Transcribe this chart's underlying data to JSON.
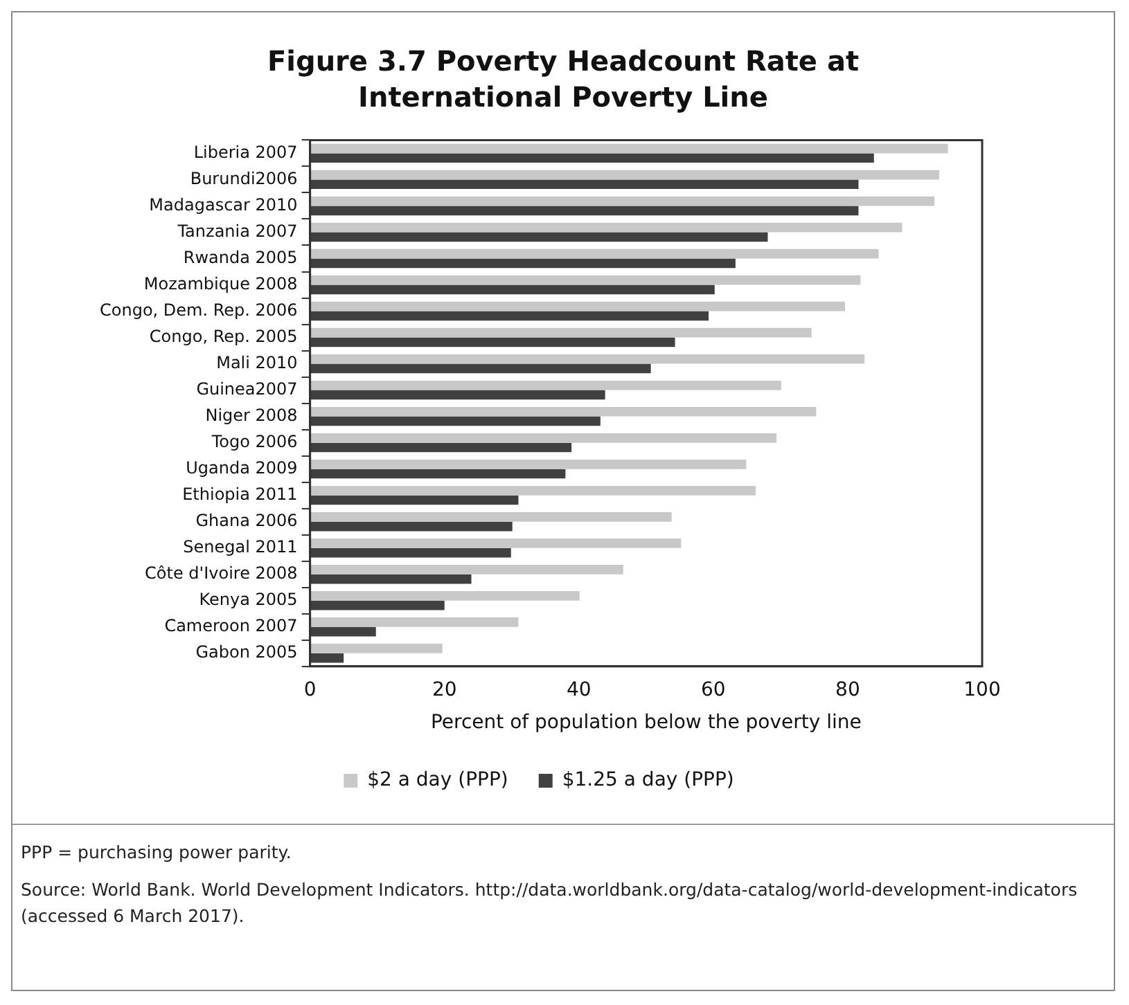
{
  "chart_data": {
    "type": "bar",
    "orientation": "horizontal",
    "title": "Figure 3.7  Poverty Headcount Rate at International Poverty Line",
    "xlabel": "Percent of population below the poverty line",
    "categories": [
      "Liberia 2007",
      "Burundi2006",
      "Madagascar 2010",
      "Tanzania 2007",
      "Rwanda 2005",
      "Mozambique 2008",
      "Congo, Dem. Rep. 2006",
      "Congo, Rep. 2005",
      "Mali 2010",
      "Guinea2007",
      "Niger 2008",
      "Togo 2006",
      "Uganda 2009",
      "Ethiopia 2011",
      "Ghana 2006",
      "Senegal 2011",
      "Côte d'Ivoire 2008",
      "Kenya 2005",
      "Cameroon 2007",
      "Gabon 2005"
    ],
    "series": [
      {
        "name": "$2 a day (PPP)",
        "color": "#c8c8c8",
        "values": [
          94.9,
          93.6,
          92.9,
          88.1,
          84.6,
          81.9,
          79.6,
          74.6,
          82.5,
          70.1,
          75.3,
          69.4,
          64.9,
          66.3,
          53.8,
          55.2,
          46.6,
          40.1,
          31.0,
          19.7
        ]
      },
      {
        "name": "$1.25 a day (PPP)",
        "color": "#404040",
        "values": [
          83.9,
          81.6,
          81.6,
          68.1,
          63.3,
          60.2,
          59.3,
          54.3,
          50.7,
          43.9,
          43.2,
          38.9,
          38.0,
          31.0,
          30.1,
          29.9,
          24.0,
          20.0,
          9.8,
          5.0
        ]
      }
    ],
    "xlim": [
      0,
      100
    ],
    "xticks": [
      0,
      20,
      40,
      60,
      80,
      100
    ],
    "grid": false,
    "legend": "bottom",
    "annotations": [
      "PPP = purchasing power parity.",
      "Source: World Bank. World Development Indicators. http://data.worldbank.org/data-catalog/world-development-indicators (accessed 6 March 2017)."
    ]
  }
}
